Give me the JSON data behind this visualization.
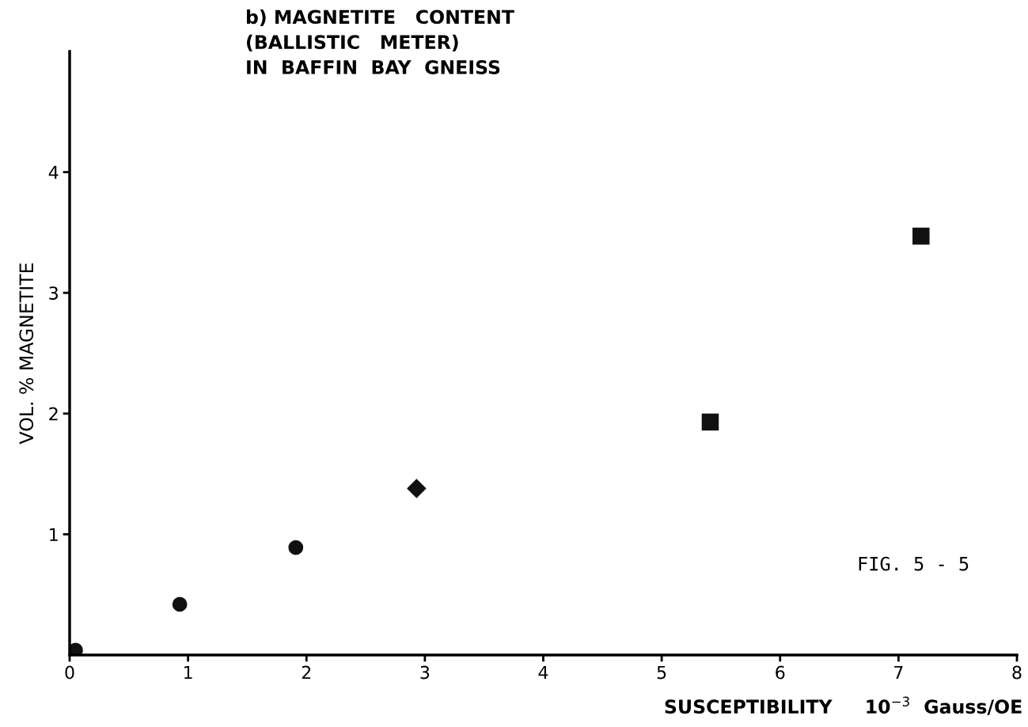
{
  "chart_data": {
    "type": "scatter",
    "title": "b) MAGNETITE   CONTENT\n(BALLISTIC   METER)\nIN  BAFFIN  BAY  GNEISS",
    "xlabel": "SUSCEPTIBILITY     10$^{−3}$  Gauss/OE",
    "ylabel": "VOL. % MAGNETITE",
    "series": [
      {
        "color": "#111111",
        "marker": "circle",
        "x": [
          0.05
        ],
        "values": [
          0.04
        ]
      },
      {
        "color": "#111111",
        "marker": "circle",
        "x": [
          0.93
        ],
        "values": [
          0.42
        ]
      },
      {
        "color": "#111111",
        "marker": "circle",
        "x": [
          1.91
        ],
        "values": [
          0.89
        ]
      },
      {
        "color": "#111111",
        "marker": "diamond",
        "x": [
          2.93
        ],
        "values": [
          1.38
        ]
      },
      {
        "color": "#111111",
        "marker": "square",
        "x": [
          5.41
        ],
        "values": [
          1.93
        ]
      },
      {
        "color": "#111111",
        "marker": "square",
        "x": [
          7.19
        ],
        "values": [
          3.47
        ]
      }
    ],
    "xlim": [
      0,
      8
    ],
    "xticks": [
      0,
      1,
      2,
      3,
      4,
      5,
      6,
      7,
      8
    ],
    "ylim": [
      0,
      5
    ],
    "yticks": [
      1,
      2,
      3,
      4
    ],
    "grid": false,
    "legend": false,
    "annotations": [
      "FIG. 5 - 5"
    ]
  }
}
